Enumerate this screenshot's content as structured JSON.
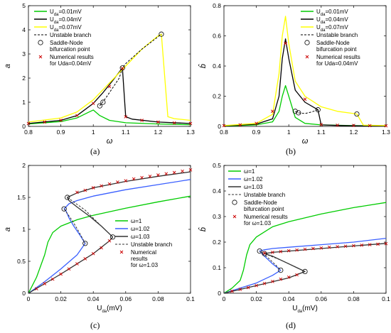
{
  "chart_data": [
    {
      "id": "a",
      "panel_label": "(a)",
      "type": "line",
      "title": "",
      "xlabel": "ω",
      "ylabel": "a",
      "xlim": [
        0.8,
        1.3
      ],
      "ylim": [
        0,
        5
      ],
      "xticks": [
        "0.8",
        "0.9",
        "1",
        "1.1",
        "1.2",
        "1.3"
      ],
      "yticks": [
        "0",
        "1",
        "2",
        "3",
        "4",
        "5"
      ],
      "legend_position": "top-left",
      "grid": false,
      "series": [
        {
          "name": "Uda=0.01mV",
          "label_main": "U",
          "label_sub": "da",
          "label_rest": "=0.01mV",
          "color": "#00cc00",
          "style": "solid",
          "x": [
            0.8,
            0.9,
            0.95,
            0.98,
            1.0,
            1.02,
            1.05,
            1.1,
            1.2,
            1.3
          ],
          "y": [
            0.1,
            0.2,
            0.35,
            0.55,
            0.68,
            0.45,
            0.25,
            0.15,
            0.1,
            0.07
          ]
        },
        {
          "name": "Uda=0.04mV",
          "label_main": "U",
          "label_sub": "da",
          "label_rest": "=0.04mV",
          "color": "#000000",
          "style": "solid",
          "x": [
            0.8,
            0.9,
            0.95,
            1.0,
            1.03,
            1.06,
            1.08,
            1.09,
            1.1,
            1.12,
            1.2,
            1.3
          ],
          "y": [
            0.12,
            0.25,
            0.45,
            0.95,
            1.4,
            1.9,
            2.25,
            2.42,
            0.4,
            0.3,
            0.18,
            0.12
          ]
        },
        {
          "name": "Uda=0.07mV",
          "label_main": "U",
          "label_sub": "da",
          "label_rest": "=0.07mV",
          "color": "#ffff00",
          "style": "solid",
          "x": [
            0.8,
            0.9,
            0.95,
            1.0,
            1.05,
            1.1,
            1.15,
            1.2,
            1.21,
            1.23,
            1.25,
            1.3
          ],
          "y": [
            0.18,
            0.35,
            0.6,
            1.1,
            1.8,
            2.5,
            3.2,
            3.75,
            3.82,
            0.4,
            0.32,
            0.25
          ]
        },
        {
          "name": "Unstable branch",
          "label_main": "Unstable branch",
          "label_sub": "",
          "label_rest": "",
          "color": "#000000",
          "style": "dashed",
          "x": [
            1.02,
            1.04,
            1.06,
            1.08,
            1.09,
            1.1,
            1.15,
            1.21
          ],
          "y": [
            0.85,
            1.2,
            1.6,
            2.0,
            2.42,
            2.6,
            3.2,
            3.82
          ]
        }
      ],
      "markers": [
        {
          "name": "Saddle-Node bifurcation point",
          "lines": [
            "Saddle-Node",
            "bifurcation point"
          ],
          "symbol": "circle",
          "x": [
            1.02,
            1.03,
            1.09,
            1.21
          ],
          "y": [
            0.85,
            1.0,
            2.42,
            3.82
          ]
        },
        {
          "name": "Numerical results for Uda=0.04mV",
          "lines": [
            "Numerical results",
            "for Uda=0.04mV"
          ],
          "symbol": "cross",
          "color": "#cc0000",
          "x": [
            0.8,
            0.85,
            0.9,
            0.95,
            1.0,
            1.05,
            1.09,
            1.1,
            1.15,
            1.2,
            1.25,
            1.3
          ],
          "y": [
            0.12,
            0.18,
            0.25,
            0.45,
            0.95,
            1.65,
            2.4,
            0.4,
            0.25,
            0.18,
            0.14,
            0.12
          ]
        }
      ]
    },
    {
      "id": "b",
      "panel_label": "(b)",
      "type": "line",
      "title": "",
      "xlabel": "ω",
      "ylabel": "b̂",
      "xlim": [
        0.8,
        1.3
      ],
      "ylim": [
        0,
        0.8
      ],
      "xticks": [
        "0.8",
        "0.9",
        "1",
        "1.1",
        "1.2",
        "1.3"
      ],
      "yticks": [
        "0",
        "0.2",
        "0.4",
        "0.6",
        "0.8"
      ],
      "legend_position": "top-right",
      "grid": false,
      "series": [
        {
          "name": "Uda=0.01mV",
          "label_main": "U",
          "label_sub": "da",
          "label_rest": "=0.01mV",
          "color": "#00cc00",
          "style": "solid",
          "x": [
            0.8,
            0.9,
            0.95,
            0.97,
            0.98,
            0.99,
            1.0,
            1.02,
            1.05,
            1.1,
            1.2,
            1.3
          ],
          "y": [
            0.002,
            0.01,
            0.03,
            0.1,
            0.2,
            0.27,
            0.2,
            0.06,
            0.02,
            0.01,
            0.005,
            0.003
          ]
        },
        {
          "name": "Uda=0.04mV",
          "label_main": "U",
          "label_sub": "da",
          "label_rest": "=0.04mV",
          "color": "#000000",
          "style": "solid",
          "x": [
            0.8,
            0.9,
            0.95,
            0.97,
            0.98,
            0.99,
            1.0,
            1.02,
            1.05,
            1.09,
            1.1,
            1.15,
            1.2,
            1.3
          ],
          "y": [
            0.003,
            0.015,
            0.05,
            0.2,
            0.45,
            0.58,
            0.45,
            0.24,
            0.16,
            0.11,
            0.01,
            0.006,
            0.004,
            0.003
          ]
        },
        {
          "name": "Uda=0.07mV",
          "label_main": "U",
          "label_sub": "da",
          "label_rest": "=0.07mV",
          "color": "#ffff00",
          "style": "solid",
          "x": [
            0.8,
            0.9,
            0.95,
            0.97,
            0.98,
            0.99,
            1.0,
            1.02,
            1.05,
            1.1,
            1.15,
            1.2,
            1.21,
            1.23,
            1.3
          ],
          "y": [
            0.005,
            0.02,
            0.08,
            0.35,
            0.6,
            0.73,
            0.55,
            0.3,
            0.2,
            0.13,
            0.1,
            0.085,
            0.082,
            0.008,
            0.005
          ]
        },
        {
          "name": "Unstable branch",
          "label_main": "Unstable branch",
          "label_sub": "",
          "label_rest": "",
          "color": "#000000",
          "style": "dashed",
          "x": [
            1.02,
            1.03,
            1.05,
            1.07,
            1.09
          ],
          "y": [
            0.1,
            0.09,
            0.085,
            0.095,
            0.11
          ]
        }
      ],
      "markers": [
        {
          "name": "Saddle-Node bifurcation point",
          "lines": [
            "Saddle-Node",
            "bifurcation point"
          ],
          "symbol": "circle",
          "x": [
            1.02,
            1.03,
            1.09,
            1.21
          ],
          "y": [
            0.1,
            0.09,
            0.11,
            0.082
          ]
        },
        {
          "name": "Numerical results for Uda=0.04mV",
          "lines": [
            "Numerical results",
            "for Uda=0.04mV"
          ],
          "symbol": "cross",
          "color": "#cc0000",
          "x": [
            0.8,
            0.85,
            0.9,
            0.95,
            0.99,
            1.05,
            1.1,
            1.15,
            1.2,
            1.25,
            1.3
          ],
          "y": [
            0.005,
            0.01,
            0.02,
            0.1,
            0.55,
            0.18,
            0.012,
            0.008,
            0.006,
            0.005,
            0.004
          ]
        }
      ]
    },
    {
      "id": "c",
      "panel_label": "(c)",
      "type": "line",
      "title": "",
      "xlabel": "Uda(mV)",
      "xlabel_main": "U",
      "xlabel_sub": "da",
      "xlabel_rest": "(mV)",
      "ylabel": "a",
      "xlim": [
        0,
        0.1
      ],
      "ylim": [
        0,
        2
      ],
      "xticks": [
        "0",
        "0.02",
        "0.04",
        "0.06",
        "0.08",
        "0.1"
      ],
      "yticks": [
        "0",
        "0.5",
        "1",
        "1.5",
        "2"
      ],
      "legend_position": "right",
      "grid": false,
      "series": [
        {
          "name": "ω=1",
          "label_main": "ω=1",
          "label_sub": "",
          "label_rest": "",
          "color": "#00cc00",
          "style": "solid",
          "x": [
            0,
            0.005,
            0.01,
            0.012,
            0.015,
            0.02,
            0.03,
            0.04,
            0.06,
            0.08,
            0.1
          ],
          "y": [
            0,
            0.25,
            0.6,
            0.8,
            0.95,
            1.05,
            1.15,
            1.22,
            1.33,
            1.43,
            1.52
          ]
        },
        {
          "name": "ω=1.02",
          "label_main": "ω=1.02",
          "label_sub": "",
          "label_rest": "",
          "color": "#3a5fff",
          "style": "solid",
          "x": [
            0,
            0.01,
            0.02,
            0.03,
            0.035,
            0.032,
            0.028,
            0.025,
            0.023,
            0.022,
            0.025,
            0.03,
            0.04,
            0.06,
            0.08,
            0.1
          ],
          "y": [
            0,
            0.18,
            0.38,
            0.6,
            0.78,
            0.9,
            1.05,
            1.18,
            1.3,
            1.32,
            1.4,
            1.45,
            1.52,
            1.62,
            1.7,
            1.78
          ]
        },
        {
          "name": "ω=1.03",
          "label_main": "ω=1.03",
          "label_sub": "",
          "label_rest": "",
          "color": "#333333",
          "style": "solid",
          "x": [
            0,
            0.01,
            0.02,
            0.03,
            0.04,
            0.05,
            0.052,
            0.045,
            0.038,
            0.03,
            0.025,
            0.024,
            0.03,
            0.04,
            0.06,
            0.08,
            0.1
          ],
          "y": [
            0,
            0.15,
            0.3,
            0.46,
            0.62,
            0.82,
            0.88,
            1.05,
            1.2,
            1.35,
            1.45,
            1.5,
            1.57,
            1.65,
            1.75,
            1.83,
            1.9
          ]
        },
        {
          "name": "Unstable branch",
          "label_main": "Unstable branch",
          "label_sub": "",
          "label_rest": "",
          "color": "#333333",
          "style": "dashed",
          "x": [
            0.022,
            0.028,
            0.032,
            0.035,
            0.024,
            0.035,
            0.045,
            0.052
          ],
          "y": [
            1.32,
            1.1,
            0.92,
            0.78,
            1.5,
            1.3,
            1.05,
            0.88
          ]
        }
      ],
      "markers": [
        {
          "name": "",
          "lines": [],
          "symbol": "circle",
          "x": [
            0.022,
            0.024,
            0.035,
            0.052
          ],
          "y": [
            1.32,
            1.5,
            0.78,
            0.88
          ]
        },
        {
          "name": "Numerical results for ω=1.03",
          "lines": [
            "Numerical",
            "results",
            "for ω=1.03"
          ],
          "symbol": "cross",
          "color": "#cc0000",
          "x": [
            0.005,
            0.01,
            0.015,
            0.02,
            0.025,
            0.03,
            0.035,
            0.04,
            0.045,
            0.05,
            0.03,
            0.035,
            0.04,
            0.045,
            0.05,
            0.055,
            0.06,
            0.065,
            0.07,
            0.075,
            0.08,
            0.085,
            0.09,
            0.095,
            0.1
          ],
          "y": [
            0.07,
            0.15,
            0.22,
            0.3,
            0.38,
            0.46,
            0.54,
            0.62,
            0.71,
            0.82,
            1.58,
            1.61,
            1.65,
            1.68,
            1.71,
            1.74,
            1.76,
            1.79,
            1.81,
            1.83,
            1.85,
            1.87,
            1.89,
            1.91,
            1.93
          ]
        }
      ]
    },
    {
      "id": "d",
      "panel_label": "(d)",
      "type": "line",
      "title": "",
      "xlabel": "Uda(mV)",
      "xlabel_main": "U",
      "xlabel_sub": "da",
      "xlabel_rest": "(mV)",
      "ylabel": "b̂",
      "xlim": [
        0,
        0.1
      ],
      "ylim": [
        0,
        0.5
      ],
      "xticks": [
        "0",
        "0.02",
        "0.04",
        "0.06",
        "0.08",
        "0.1"
      ],
      "yticks": [
        "0",
        "0.1",
        "0.2",
        "0.3",
        "0.4",
        "0.5"
      ],
      "legend_position": "top-left",
      "grid": false,
      "series": [
        {
          "name": "ω=1",
          "label_main": "ω=1",
          "label_sub": "",
          "label_rest": "",
          "color": "#00cc00",
          "style": "solid",
          "x": [
            0,
            0.005,
            0.01,
            0.012,
            0.014,
            0.016,
            0.02,
            0.03,
            0.04,
            0.06,
            0.08,
            0.1
          ],
          "y": [
            0,
            0.02,
            0.05,
            0.09,
            0.15,
            0.19,
            0.22,
            0.26,
            0.28,
            0.31,
            0.335,
            0.355
          ]
        },
        {
          "name": "ω=1.02",
          "label_main": "ω=1.02",
          "label_sub": "",
          "label_rest": "",
          "color": "#3a5fff",
          "style": "solid",
          "x": [
            0,
            0.01,
            0.02,
            0.03,
            0.035,
            0.03,
            0.025,
            0.022,
            0.025,
            0.03,
            0.04,
            0.06,
            0.08,
            0.1
          ],
          "y": [
            0,
            0.02,
            0.04,
            0.07,
            0.09,
            0.115,
            0.145,
            0.165,
            0.17,
            0.175,
            0.18,
            0.19,
            0.2,
            0.215
          ]
        },
        {
          "name": "ω=1.03",
          "label_main": "ω=1.03",
          "label_sub": "",
          "label_rest": "",
          "color": "#333333",
          "style": "solid",
          "x": [
            0,
            0.01,
            0.02,
            0.03,
            0.04,
            0.05,
            0.045,
            0.04,
            0.035,
            0.03,
            0.025,
            0.03,
            0.04,
            0.06,
            0.08,
            0.1
          ],
          "y": [
            0,
            0.015,
            0.03,
            0.045,
            0.06,
            0.085,
            0.1,
            0.115,
            0.13,
            0.145,
            0.155,
            0.16,
            0.165,
            0.175,
            0.185,
            0.195
          ]
        },
        {
          "name": "Unstable branch",
          "label_main": "Unstable branch",
          "label_sub": "",
          "label_rest": "",
          "color": "#333333",
          "style": "dashed",
          "x": [
            0.022,
            0.027,
            0.032,
            0.035,
            0.025,
            0.035,
            0.045,
            0.05
          ],
          "y": [
            0.165,
            0.14,
            0.11,
            0.09,
            0.155,
            0.13,
            0.1,
            0.085
          ]
        }
      ],
      "markers": [
        {
          "name": "Saddle-Node bifurcation point",
          "lines": [
            "Saddle-Node",
            "bifurcation point"
          ],
          "symbol": "circle",
          "x": [
            0.022,
            0.025,
            0.035,
            0.05
          ],
          "y": [
            0.165,
            0.155,
            0.09,
            0.085
          ]
        },
        {
          "name": "Numerical results for ω=1.03",
          "lines": [
            "Numerical results",
            "for ω=1.03"
          ],
          "symbol": "cross",
          "color": "#cc0000",
          "x": [
            0.005,
            0.01,
            0.015,
            0.02,
            0.025,
            0.03,
            0.035,
            0.04,
            0.045,
            0.025,
            0.03,
            0.035,
            0.04,
            0.045,
            0.05,
            0.055,
            0.06,
            0.065,
            0.07,
            0.075,
            0.08,
            0.085,
            0.09,
            0.095,
            0.1
          ],
          "y": [
            0.008,
            0.015,
            0.022,
            0.03,
            0.038,
            0.046,
            0.055,
            0.063,
            0.072,
            0.157,
            0.16,
            0.163,
            0.166,
            0.169,
            0.172,
            0.175,
            0.177,
            0.18,
            0.182,
            0.184,
            0.186,
            0.188,
            0.19,
            0.192,
            0.194
          ]
        }
      ]
    }
  ]
}
